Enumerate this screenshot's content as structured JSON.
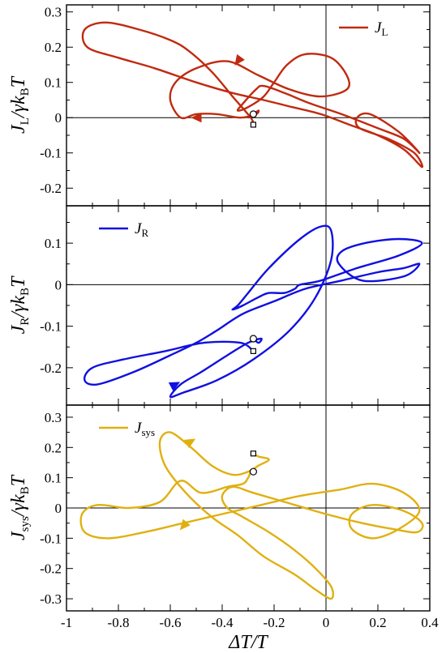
{
  "chart_data": [
    {
      "type": "line",
      "panel": "top",
      "ylabel": "J_L/γk_BT",
      "ylabel_parts": {
        "a": "J",
        "a_sub": "L",
        "b": "/γk",
        "b_sub": "B",
        "c": "T"
      },
      "xlim": [
        -1,
        0.4
      ],
      "ylim": [
        -0.25,
        0.32
      ],
      "yticks": [
        -0.2,
        -0.1,
        0,
        0.1,
        0.2,
        0.3
      ],
      "ytick_labels": [
        "-0.2",
        "-0.1",
        "0",
        "0.1",
        "0.2",
        "0.3"
      ],
      "legend_position": "top-right",
      "grid": false,
      "series": [
        {
          "name": "J_L",
          "name_parts": {
            "main": "J",
            "sub": "L"
          },
          "color": "#c02a10",
          "x": [
            -0.28,
            -0.29,
            -0.36,
            -0.44,
            -0.53,
            -0.6,
            -0.72,
            -0.85,
            -0.93,
            -0.92,
            -0.8,
            -0.66,
            -0.5,
            -0.36,
            -0.24,
            -0.13,
            -0.02,
            0.09,
            0.2,
            0.3,
            0.37,
            0.34,
            0.24,
            0.13,
            0.12,
            0.17,
            0.28,
            0.36,
            0.3,
            0.2,
            0.06,
            -0.06,
            -0.16,
            -0.24,
            -0.27,
            -0.32,
            -0.34,
            -0.3,
            -0.24,
            -0.2,
            -0.15,
            -0.08,
            0.02,
            0.08,
            0.08,
            -0.02,
            -0.14,
            -0.26,
            -0.38,
            -0.5,
            -0.58,
            -0.6,
            -0.56,
            -0.5,
            -0.42,
            -0.33,
            -0.27,
            -0.26,
            -0.28
          ],
          "y": [
            -0.02,
            0.0,
            0.06,
            0.13,
            0.19,
            0.22,
            0.25,
            0.27,
            0.25,
            0.2,
            0.17,
            0.14,
            0.1,
            0.07,
            0.05,
            0.03,
            0.01,
            -0.02,
            -0.05,
            -0.09,
            -0.14,
            -0.1,
            -0.06,
            -0.03,
            0.0,
            0.01,
            -0.04,
            -0.1,
            -0.06,
            -0.03,
            0.01,
            0.04,
            0.07,
            0.09,
            0.08,
            0.04,
            0.02,
            0.03,
            0.06,
            0.1,
            0.15,
            0.18,
            0.17,
            0.12,
            0.08,
            0.06,
            0.08,
            0.12,
            0.16,
            0.14,
            0.1,
            0.05,
            0.0,
            0.01,
            0.01,
            0.0,
            0.01,
            0.02,
            0.01
          ],
          "start_point": [
            -0.28,
            -0.02
          ],
          "end_point": [
            -0.28,
            0.01
          ],
          "arrows": [
            [
              -0.5,
              0.0,
              -0.56,
              0.0
            ],
            [
              -0.34,
              0.16,
              -0.38,
              0.12
            ]
          ]
        }
      ]
    },
    {
      "type": "line",
      "panel": "middle",
      "ylabel": "J_R/γk_BT",
      "ylabel_parts": {
        "a": "J",
        "a_sub": "R",
        "b": "/γk",
        "b_sub": "B",
        "c": "T"
      },
      "xlim": [
        -1,
        0.4
      ],
      "ylim": [
        -0.29,
        0.19
      ],
      "yticks": [
        -0.2,
        -0.1,
        0,
        0.1
      ],
      "ytick_labels": [
        "-0.2",
        "-0.1",
        "0",
        "0.1"
      ],
      "legend_position": "top-left",
      "grid": false,
      "series": [
        {
          "name": "J_R",
          "name_parts": {
            "main": "J",
            "sub": "R"
          },
          "color": "#1010e0",
          "x": [
            -0.28,
            -0.33,
            -0.47,
            -0.62,
            -0.78,
            -0.9,
            -0.93,
            -0.88,
            -0.74,
            -0.6,
            -0.5,
            -0.42,
            -0.32,
            -0.2,
            -0.08,
            0.06,
            0.2,
            0.3,
            0.36,
            0.3,
            0.14,
            0.05,
            0.06,
            0.15,
            0.28,
            0.37,
            0.28,
            0.12,
            -0.02,
            -0.1,
            -0.12,
            -0.16,
            -0.22,
            -0.26,
            -0.32,
            -0.36,
            -0.34,
            -0.3,
            -0.22,
            -0.1,
            -0.02,
            0.02,
            0.02,
            -0.04,
            -0.14,
            -0.28,
            -0.42,
            -0.55,
            -0.6,
            -0.56,
            -0.48,
            -0.38,
            -0.3,
            -0.25,
            -0.26,
            -0.28
          ],
          "y": [
            -0.16,
            -0.14,
            -0.14,
            -0.16,
            -0.18,
            -0.2,
            -0.23,
            -0.24,
            -0.21,
            -0.17,
            -0.14,
            -0.11,
            -0.07,
            -0.04,
            -0.01,
            0.01,
            0.03,
            0.04,
            0.05,
            0.02,
            0.01,
            0.05,
            0.08,
            0.1,
            0.11,
            0.1,
            0.07,
            0.04,
            0.01,
            0.0,
            -0.01,
            -0.02,
            -0.02,
            -0.03,
            -0.05,
            -0.06,
            -0.05,
            -0.02,
            0.04,
            0.11,
            0.14,
            0.13,
            0.06,
            -0.03,
            -0.11,
            -0.18,
            -0.23,
            -0.26,
            -0.27,
            -0.24,
            -0.21,
            -0.17,
            -0.14,
            -0.13,
            -0.14,
            -0.13
          ],
          "start_point": [
            -0.28,
            -0.16
          ],
          "end_point": [
            -0.28,
            -0.13
          ],
          "arrows": [
            [
              -0.58,
              -0.24,
              -0.52,
              -0.22
            ]
          ]
        }
      ]
    },
    {
      "type": "line",
      "panel": "bottom",
      "ylabel": "J_sys/γk_BT",
      "ylabel_parts": {
        "a": "J",
        "a_sub": "sys",
        "b": "/γk",
        "b_sub": "B",
        "c": "T"
      },
      "xlabel": "ΔT/T",
      "xlim": [
        -1,
        0.4
      ],
      "xticks": [
        -1,
        -0.8,
        -0.6,
        -0.4,
        -0.2,
        0,
        0.2,
        0.4
      ],
      "xtick_labels": [
        "-1",
        "-0.8",
        "-0.6",
        "-0.4",
        "-0.2",
        "0",
        "0.2",
        "0.4"
      ],
      "ylim": [
        -0.34,
        0.34
      ],
      "yticks": [
        -0.3,
        -0.2,
        -0.1,
        0,
        0.1,
        0.2,
        0.3
      ],
      "ytick_labels": [
        "-0.3",
        "-0.2",
        "-0.1",
        "0",
        "0.1",
        "0.2",
        "0.3"
      ],
      "legend_position": "top-left",
      "grid": false,
      "series": [
        {
          "name": "J_sys",
          "name_parts": {
            "main": "J",
            "sub": "sys"
          },
          "color": "#e0b010",
          "x": [
            -0.28,
            -0.26,
            -0.22,
            -0.26,
            -0.3,
            -0.36,
            -0.44,
            -0.52,
            -0.6,
            -0.64,
            -0.62,
            -0.54,
            -0.44,
            -0.34,
            -0.24,
            -0.12,
            -0.04,
            0.02,
            0.02,
            -0.04,
            -0.12,
            -0.22,
            -0.32,
            -0.38,
            -0.4,
            -0.36,
            -0.28,
            -0.16,
            0.0,
            0.14,
            0.26,
            0.35,
            0.37,
            0.3,
            0.18,
            0.1,
            0.1,
            0.18,
            0.28,
            0.36,
            0.3,
            0.18,
            0.05,
            -0.1,
            -0.25,
            -0.4,
            -0.55,
            -0.7,
            -0.84,
            -0.93,
            -0.94,
            -0.88,
            -0.76,
            -0.64,
            -0.56,
            -0.48,
            -0.38,
            -0.32,
            -0.3,
            -0.29
          ],
          "y": [
            0.18,
            0.17,
            0.16,
            0.14,
            0.12,
            0.11,
            0.14,
            0.2,
            0.25,
            0.22,
            0.14,
            0.05,
            -0.03,
            -0.09,
            -0.16,
            -0.22,
            -0.27,
            -0.3,
            -0.26,
            -0.2,
            -0.14,
            -0.08,
            -0.03,
            0.0,
            0.04,
            0.07,
            0.05,
            0.02,
            -0.02,
            -0.05,
            -0.07,
            -0.08,
            -0.05,
            -0.01,
            0.01,
            -0.02,
            -0.07,
            -0.1,
            -0.07,
            -0.01,
            0.05,
            0.08,
            0.06,
            0.04,
            0.01,
            -0.02,
            -0.05,
            -0.08,
            -0.1,
            -0.08,
            -0.02,
            0.01,
            0.0,
            0.02,
            0.09,
            0.05,
            0.07,
            0.08,
            0.1,
            0.12
          ],
          "start_point": [
            -0.28,
            0.18
          ],
          "end_point": [
            -0.28,
            0.12
          ],
          "arrows": [
            [
              -0.52,
              0.22,
              -0.46,
              0.25
            ],
            [
              -0.55,
              -0.06,
              -0.58,
              -0.09
            ]
          ]
        }
      ]
    }
  ]
}
